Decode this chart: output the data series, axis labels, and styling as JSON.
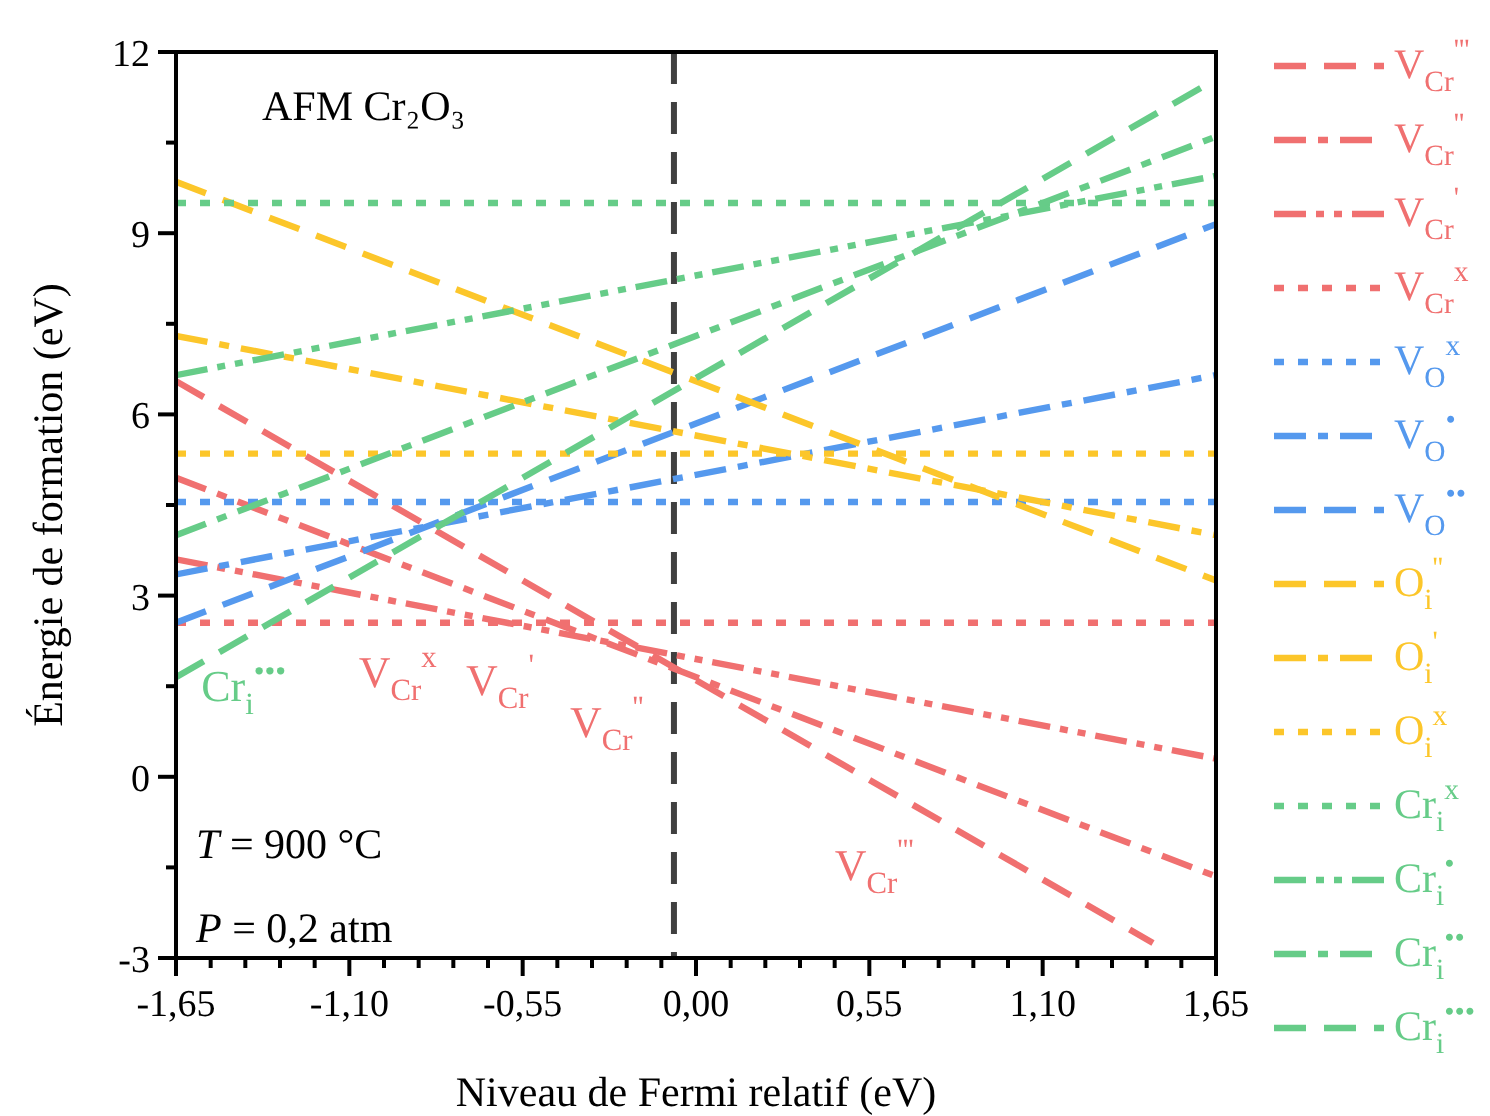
{
  "chart_data": {
    "type": "line",
    "xlabel": "Niveau de Fermi relatif (eV)",
    "ylabel": "Énergie de formation (eV)",
    "x": [
      -1.65,
      1.65
    ],
    "xlim": [
      -1.65,
      1.65
    ],
    "ylim": [
      -3,
      12
    ],
    "xticks": [
      {
        "value": -1.65,
        "label": "-1,65"
      },
      {
        "value": -1.54,
        "label": null
      },
      {
        "value": -1.43,
        "label": null
      },
      {
        "value": -1.32,
        "label": null
      },
      {
        "value": -1.21,
        "label": null
      },
      {
        "value": -1.1,
        "label": "-1,10"
      },
      {
        "value": -0.99,
        "label": null
      },
      {
        "value": -0.88,
        "label": null
      },
      {
        "value": -0.77,
        "label": null
      },
      {
        "value": -0.66,
        "label": null
      },
      {
        "value": -0.55,
        "label": "-0,55"
      },
      {
        "value": -0.44,
        "label": null
      },
      {
        "value": -0.33,
        "label": null
      },
      {
        "value": -0.22,
        "label": null
      },
      {
        "value": -0.11,
        "label": null
      },
      {
        "value": 0,
        "label": "0,00"
      },
      {
        "value": 0.11,
        "label": null
      },
      {
        "value": 0.22,
        "label": null
      },
      {
        "value": 0.33,
        "label": null
      },
      {
        "value": 0.44,
        "label": null
      },
      {
        "value": 0.55,
        "label": "0,55"
      },
      {
        "value": 0.66,
        "label": null
      },
      {
        "value": 0.77,
        "label": null
      },
      {
        "value": 0.88,
        "label": null
      },
      {
        "value": 0.99,
        "label": null
      },
      {
        "value": 1.1,
        "label": "1,10"
      },
      {
        "value": 1.21,
        "label": null
      },
      {
        "value": 1.32,
        "label": null
      },
      {
        "value": 1.43,
        "label": null
      },
      {
        "value": 1.54,
        "label": null
      },
      {
        "value": 1.65,
        "label": "1,65"
      }
    ],
    "yticks": [
      -3,
      {
        "value": -1.5,
        "label": null
      },
      0,
      {
        "value": 1.5,
        "label": null
      },
      3,
      {
        "value": 4.5,
        "label": null
      },
      6,
      {
        "value": 7.5,
        "label": null
      },
      9,
      {
        "value": 10.5,
        "label": null
      },
      12
    ],
    "grid": false,
    "legend": "right",
    "marker": "none",
    "ref_lines": [
      {
        "axis": "x",
        "value": -0.07,
        "color": "#404040",
        "line_style": "dashed"
      }
    ],
    "annotations": [
      "AFM Cr₂O₃",
      "T = 900 °C",
      "P = 0,2 atm",
      {
        "text": "Cr$_{i}$$^{•••}$",
        "x": -1.57,
        "y": 1.89
      },
      {
        "text": "V$_{Cr}$$^{x}$",
        "x": -1.07,
        "y": 2.55
      },
      {
        "text": "V$_{Cr}$$^{'}$",
        "x": -0.73,
        "y": 2.68
      },
      {
        "text": "V$_{Cr}$$^{''}$",
        "x": -0.4,
        "y": 2.45
      },
      {
        "text": "V$_{Cr}$$^{'''}$",
        "x": 0.44,
        "y": 0.28
      }
    ],
    "series": [
      {
        "name": "V$_{Cr}$$^{'''}$",
        "color": "#f07070",
        "line_style": "dashed",
        "x": [
          -1.65,
          1.45
        ],
        "values": [
          6.55,
          -2.75
        ]
      },
      {
        "name": "V$_{Cr}$$^{''}$",
        "color": "#f07070",
        "line_style": "dashdot",
        "values": [
          4.95,
          -1.65
        ]
      },
      {
        "name": "V$_{Cr}$$^{'}$",
        "color": "#f07070",
        "line_style": "dashdotdot",
        "values": [
          3.6,
          0.3
        ]
      },
      {
        "name": "V$_{Cr}$$^{x}$",
        "color": "#f07070",
        "line_style": "dotted",
        "values": [
          2.55,
          2.55
        ]
      },
      {
        "name": "V$_{O}$$^{x}$",
        "color": "#5599ee",
        "line_style": "dotted",
        "values": [
          4.55,
          4.55
        ]
      },
      {
        "name": "V$_{O}$$^{•}$",
        "color": "#5599ee",
        "line_style": "dashdot",
        "values": [
          3.35,
          6.65
        ]
      },
      {
        "name": "V$_{O}$$^{••}$",
        "color": "#5599ee",
        "line_style": "dashed",
        "values": [
          2.55,
          9.15
        ]
      },
      {
        "name": "O$_{i}$$^{''}$",
        "color": "#fcc62a",
        "line_style": "dashed",
        "values": [
          9.85,
          3.25
        ]
      },
      {
        "name": "O$_{i}$$^{'}$",
        "color": "#fcc62a",
        "line_style": "dashdot",
        "values": [
          7.3,
          4.0
        ]
      },
      {
        "name": "O$_{i}$$^{x}$",
        "color": "#fcc62a",
        "line_style": "dotted",
        "values": [
          5.35,
          5.35
        ]
      },
      {
        "name": "Cr$_{i}$$^{x}$",
        "color": "#66cc88",
        "line_style": "dotted",
        "values": [
          9.5,
          9.5
        ]
      },
      {
        "name": "Cr$_{i}$$^{•}$",
        "color": "#66cc88",
        "line_style": "dashdotdot",
        "values": [
          6.65,
          9.95
        ]
      },
      {
        "name": "Cr$_{i}$$^{••}$",
        "color": "#66cc88",
        "line_style": "dashdot",
        "values": [
          4.0,
          10.6
        ]
      },
      {
        "name": "Cr$_{i}$$^{•••}$",
        "color": "#66cc88",
        "line_style": "dashed",
        "values": [
          1.65,
          11.55
        ]
      }
    ]
  }
}
